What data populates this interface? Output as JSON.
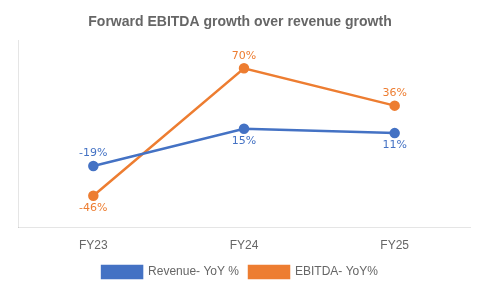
{
  "chart_data": {
    "type": "line",
    "title": "Forward EBITDA growth over revenue growth",
    "categories": [
      "FY23",
      "FY24",
      "FY25"
    ],
    "series": [
      {
        "name": "Revenue- YoY %",
        "color": "#4472C4",
        "values": [
          -19,
          15,
          11
        ],
        "value_labels": [
          "-19%",
          "15%",
          "11%"
        ]
      },
      {
        "name": "EBITDA- YoY%",
        "color": "#ED7D31",
        "values": [
          -46,
          70,
          36
        ],
        "value_labels": [
          "-46%",
          "70%",
          "36%"
        ]
      }
    ],
    "ylim": [
      -75,
      95
    ],
    "grid": false,
    "legend": "bottom",
    "data_labels": true,
    "tick_labels": "x",
    "marker": "circle"
  }
}
